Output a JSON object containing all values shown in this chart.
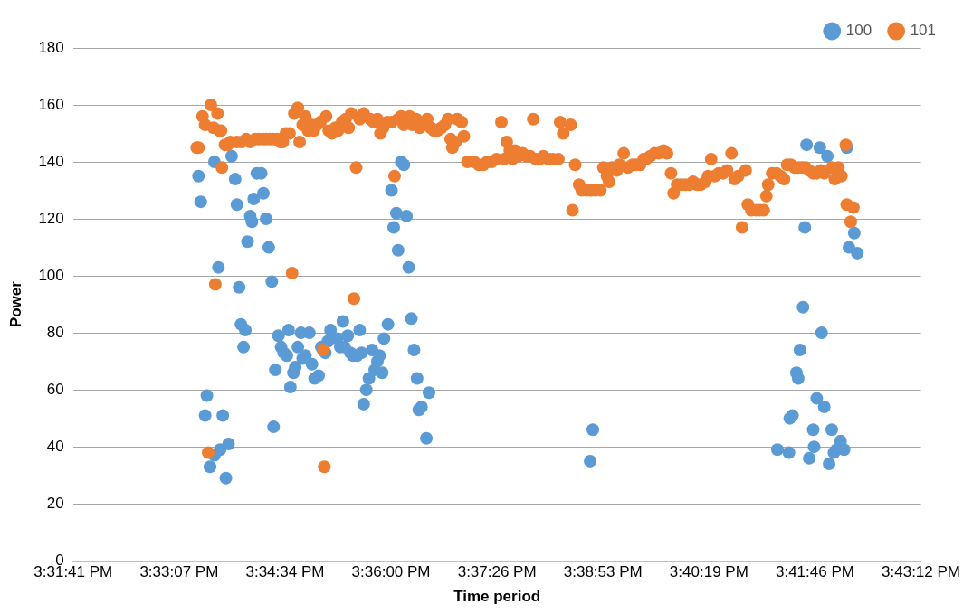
{
  "chart_data": {
    "type": "scatter",
    "xlabel": "Time period",
    "ylabel": "Power",
    "xlim": [
      15.528,
      15.72
    ],
    "xticks": [
      {
        "value": 15.528,
        "label": "3:31:41 PM"
      },
      {
        "value": 15.552,
        "label": "3:33:07 PM"
      },
      {
        "value": 15.576,
        "label": "3:34:34 PM"
      },
      {
        "value": 15.6,
        "label": "3:36:00 PM"
      },
      {
        "value": 15.624,
        "label": "3:37:26 PM"
      },
      {
        "value": 15.648,
        "label": "3:38:53 PM"
      },
      {
        "value": 15.672,
        "label": "3:40:19 PM"
      },
      {
        "value": 15.696,
        "label": "3:41:46 PM"
      },
      {
        "value": 15.72,
        "label": "3:43:12 PM"
      }
    ],
    "ylim": [
      0,
      180
    ],
    "yticks": [
      0,
      20,
      40,
      60,
      80,
      100,
      120,
      140,
      160,
      180
    ],
    "grid": "y",
    "legend": "top right",
    "marker": "circle",
    "series": [
      {
        "name": "100",
        "color": "#5b9bd5",
        "x": [
          15.5564,
          15.5569,
          15.5579,
          15.5583,
          15.559,
          15.56,
          15.56,
          15.5609,
          15.5613,
          15.5619,
          15.5626,
          15.5632,
          15.5639,
          15.5647,
          15.5651,
          15.5656,
          15.566,
          15.5666,
          15.567,
          15.5675,
          15.5681,
          15.5685,
          15.5689,
          15.5696,
          15.5706,
          15.5711,
          15.5717,
          15.5723,
          15.573,
          15.5734,
          15.5738,
          15.5745,
          15.5751,
          15.5757,
          15.5764,
          15.5768,
          15.5772,
          15.5779,
          15.5783,
          15.5789,
          15.5796,
          15.58,
          15.5806,
          15.5815,
          15.5821,
          15.5827,
          15.5836,
          15.5842,
          15.5851,
          15.5857,
          15.5863,
          15.5878,
          15.5885,
          15.5891,
          15.5895,
          15.5902,
          15.5908,
          15.5914,
          15.5923,
          15.5929,
          15.5933,
          15.5938,
          15.5944,
          15.595,
          15.5957,
          15.5963,
          15.5969,
          15.5974,
          15.598,
          15.5984,
          15.5993,
          15.6001,
          15.6006,
          15.6012,
          15.6016,
          15.6023,
          15.6029,
          15.6035,
          15.604,
          15.6046,
          15.6052,
          15.6059,
          15.6063,
          15.6069,
          15.608,
          15.6086,
          15.6451,
          15.6457,
          15.6875,
          15.6901,
          15.6903,
          15.6909,
          15.6918,
          15.6922,
          15.6926,
          15.6933,
          15.6937,
          15.6941,
          15.6947,
          15.6956,
          15.6958,
          15.6964,
          15.6971,
          15.6975,
          15.6981,
          15.6988,
          15.6992,
          15.6998,
          15.7003,
          15.7009,
          15.7018,
          15.7026,
          15.7032,
          15.7037,
          15.7049,
          15.7056
        ],
        "values": [
          135,
          126,
          51,
          58,
          33,
          140,
          37,
          103,
          39,
          51,
          29,
          41,
          142,
          134,
          125,
          96,
          83,
          75,
          81,
          112,
          121,
          119,
          127,
          136,
          136,
          129,
          120,
          110,
          98,
          47,
          67,
          79,
          75,
          73,
          72,
          81,
          61,
          66,
          68,
          75,
          80,
          71,
          72,
          80,
          69,
          64,
          65,
          75,
          73,
          77,
          81,
          78,
          75,
          84,
          75,
          79,
          73,
          72,
          72,
          81,
          73,
          55,
          60,
          64,
          74,
          67,
          70,
          72,
          66,
          78,
          83,
          130,
          117,
          122,
          109,
          140,
          139,
          121,
          103,
          85,
          74,
          64,
          53,
          54,
          43,
          59,
          35,
          46,
          39,
          38,
          50,
          51,
          66,
          64,
          74,
          89,
          117,
          146,
          36,
          46,
          40,
          57,
          145,
          80,
          54,
          142,
          34,
          46,
          38,
          39,
          42,
          39,
          145,
          110,
          115,
          108
        ]
      },
      {
        "name": "101",
        "color": "#ed7d31",
        "x": [
          15.556,
          15.5564,
          15.5573,
          15.5579,
          15.5586,
          15.5592,
          15.5598,
          15.5602,
          15.5607,
          15.5611,
          15.5615,
          15.5617,
          15.5624,
          15.563,
          15.5636,
          15.5651,
          15.5662,
          15.5672,
          15.5681,
          15.5692,
          15.57,
          15.5709,
          15.5717,
          15.5726,
          15.5734,
          15.5742,
          15.5749,
          15.5755,
          15.5762,
          15.577,
          15.5776,
          15.5781,
          15.5789,
          15.5793,
          15.58,
          15.5806,
          15.5812,
          15.5819,
          15.5825,
          15.5832,
          15.584,
          15.5846,
          15.5849,
          15.5853,
          15.5859,
          15.5866,
          15.5874,
          15.588,
          15.5889,
          15.5897,
          15.5904,
          15.591,
          15.5916,
          15.5921,
          15.5929,
          15.5938,
          15.5953,
          15.5961,
          15.5969,
          15.5976,
          15.5982,
          15.5991,
          15.6001,
          15.6008,
          15.6016,
          15.6023,
          15.6029,
          15.6042,
          15.6048,
          15.6057,
          15.6065,
          15.6082,
          15.609,
          15.6097,
          15.6105,
          15.6114,
          15.6122,
          15.6129,
          15.6135,
          15.6139,
          15.6146,
          15.615,
          15.616,
          15.6165,
          15.6173,
          15.6188,
          15.6199,
          15.6209,
          15.6218,
          15.6228,
          15.6239,
          15.625,
          15.6256,
          15.6262,
          15.6269,
          15.6275,
          15.6281,
          15.6288,
          15.6298,
          15.6307,
          15.6315,
          15.6322,
          15.6328,
          15.6337,
          15.6345,
          15.6356,
          15.6366,
          15.6379,
          15.6383,
          15.639,
          15.6407,
          15.6411,
          15.6417,
          15.6426,
          15.6432,
          15.6443,
          15.6453,
          15.6462,
          15.6474,
          15.6481,
          15.6489,
          15.6494,
          15.65,
          15.6511,
          15.6517,
          15.6527,
          15.6536,
          15.6547,
          15.6555,
          15.6564,
          15.6572,
          15.6578,
          15.6587,
          15.6597,
          15.6606,
          15.6617,
          15.6625,
          15.6634,
          15.664,
          15.6648,
          15.6657,
          15.6667,
          15.6676,
          15.6684,
          15.6693,
          15.6701,
          15.6712,
          15.6718,
          15.6725,
          15.6733,
          15.6742,
          15.6752,
          15.6761,
          15.6771,
          15.6778,
          15.6786,
          15.6795,
          15.6803,
          15.6808,
          15.6816,
          15.6827,
          15.6835,
          15.6844,
          15.685,
          15.6854,
          15.6863,
          15.6873,
          15.6882,
          15.689,
          15.6897,
          15.6905,
          15.6914,
          15.6922,
          15.6931,
          15.6939,
          15.6947,
          15.6956,
          15.6964,
          15.6973,
          15.6981,
          15.6998,
          15.7005,
          15.7013,
          15.702,
          15.703,
          15.7032,
          15.7041,
          15.7047
        ],
        "values": [
          145,
          145,
          156,
          153,
          38,
          160,
          152,
          97,
          157,
          151,
          151,
          138,
          146,
          146,
          147,
          147,
          147,
          148,
          147,
          148,
          148,
          148,
          148,
          148,
          148,
          148,
          147,
          147,
          150,
          150,
          101,
          157,
          159,
          147,
          153,
          156,
          151,
          153,
          151,
          153,
          154,
          74,
          33,
          156,
          151,
          150,
          152,
          151,
          154,
          155,
          152,
          157,
          92,
          138,
          155,
          157,
          155,
          154,
          155,
          150,
          152,
          154,
          154,
          135,
          155,
          156,
          153,
          156,
          153,
          155,
          152,
          155,
          152,
          151,
          151,
          152,
          153,
          155,
          148,
          145,
          147,
          155,
          154,
          149,
          140,
          140,
          139,
          139,
          140,
          140,
          141,
          154,
          141,
          147,
          144,
          141,
          144,
          142,
          143,
          142,
          142,
          155,
          141,
          141,
          142,
          141,
          141,
          141,
          154,
          150,
          153,
          123,
          139,
          132,
          130,
          130,
          130,
          130,
          130,
          138,
          135,
          133,
          138,
          137,
          139,
          143,
          138,
          139,
          139,
          139,
          141,
          141,
          142,
          143,
          143,
          144,
          143,
          136,
          129,
          132,
          132,
          132,
          132,
          133,
          132,
          132,
          133,
          135,
          141,
          135,
          136,
          136,
          137,
          143,
          134,
          135,
          117,
          137,
          125,
          123,
          123,
          123,
          123,
          128,
          132,
          136,
          136,
          135,
          134,
          139,
          139,
          138,
          138,
          138,
          138,
          137,
          136,
          136,
          137,
          136,
          138,
          134,
          138,
          135,
          146,
          125,
          119,
          124
        ]
      }
    ]
  }
}
